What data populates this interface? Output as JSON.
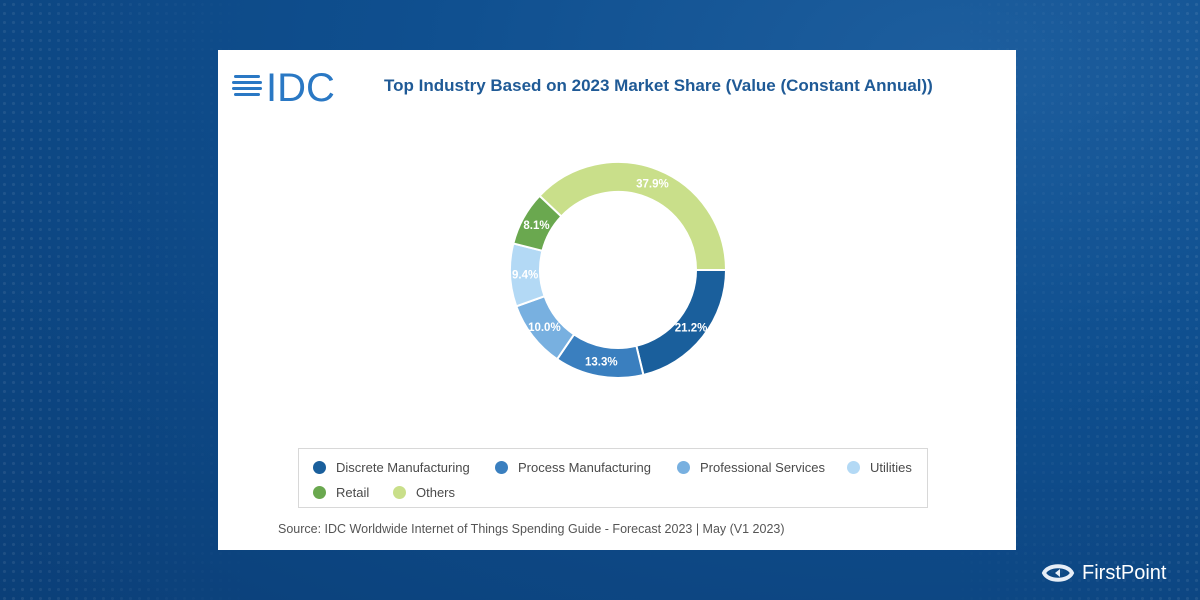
{
  "colors": {
    "brand_blue": "#1f5a96",
    "idc_blue": "#2a78c4"
  },
  "branding": {
    "idc_logo_text": "IDC",
    "footer_brand": "FirstPoint",
    "footer_icon": "firstpoint-logo-icon"
  },
  "chart_data": {
    "type": "pie",
    "donut": true,
    "title": "Top Industry Based on 2023 Market Share (Value (Constant Annual))",
    "legend_position": "bottom",
    "slices": [
      {
        "name": "Discrete Manufacturing",
        "value": 21.2,
        "label": "21.2%",
        "color": "#1a5f9c"
      },
      {
        "name": "Process Manufacturing",
        "value": 13.3,
        "label": "13.3%",
        "color": "#3a7fbf"
      },
      {
        "name": "Professional Services",
        "value": 10.0,
        "label": "10.0%",
        "color": "#78b0e0"
      },
      {
        "name": "Utilities",
        "value": 9.4,
        "label": "9.4%",
        "color": "#b3d9f5"
      },
      {
        "name": "Retail",
        "value": 8.1,
        "label": "8.1%",
        "color": "#6aa84f"
      },
      {
        "name": "Others",
        "value": 37.9,
        "label": "37.9%",
        "color": "#c9df8a"
      }
    ],
    "source": "Source: IDC Worldwide Internet of Things Spending Guide - Forecast 2023 | May (V1 2023)"
  }
}
